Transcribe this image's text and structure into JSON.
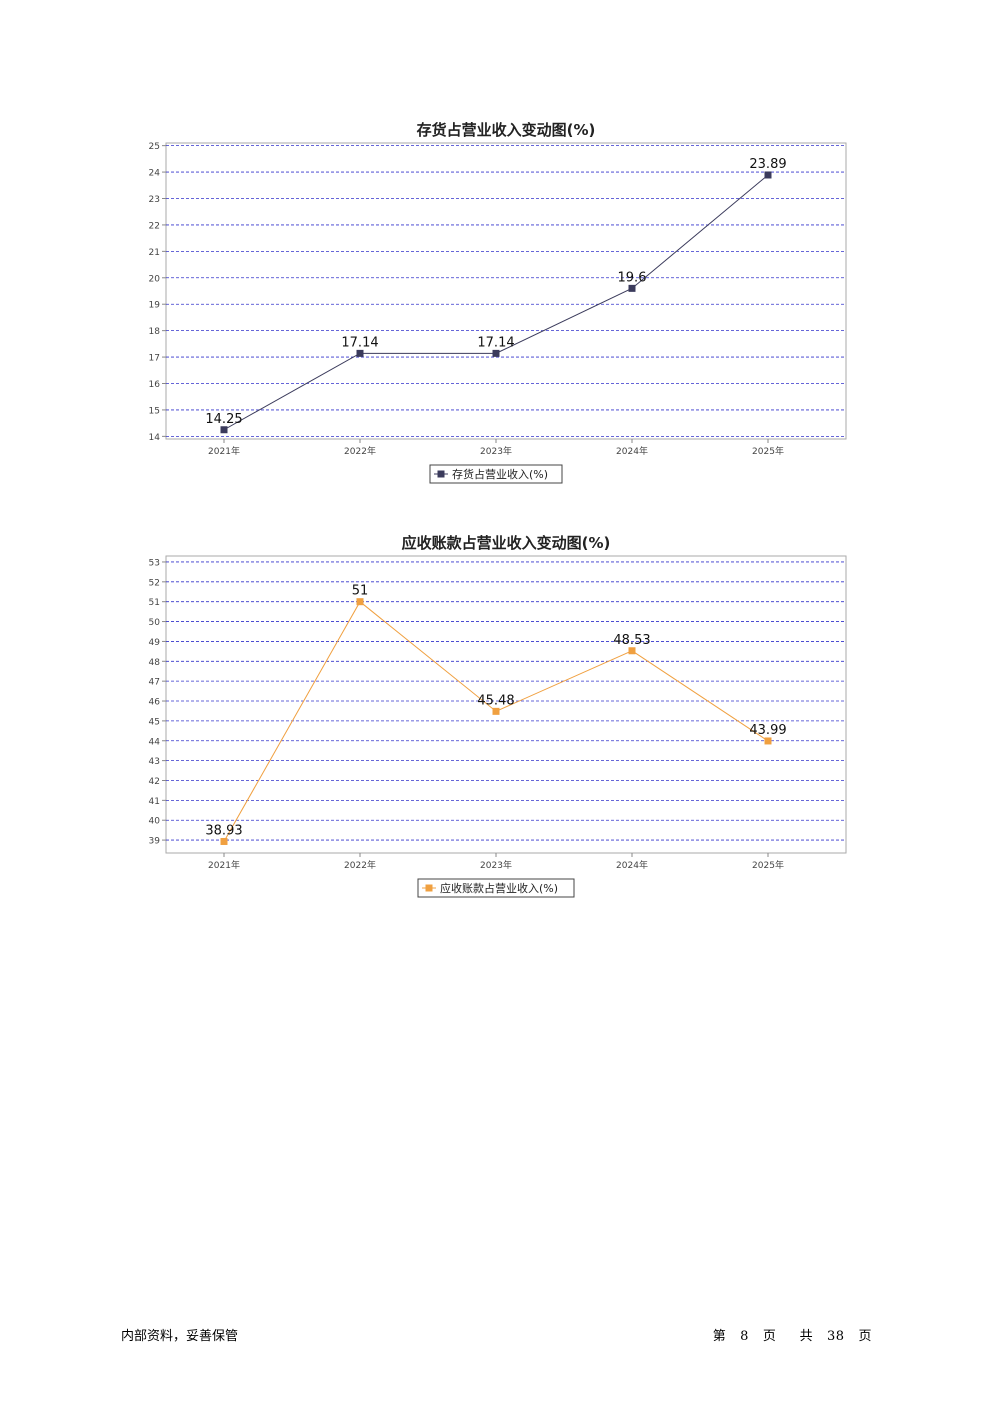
{
  "chart_data": [
    {
      "type": "line",
      "title": "存货占营业收入变动图(%)",
      "categories": [
        "2021年",
        "2022年",
        "2023年",
        "2024年",
        "2025年"
      ],
      "series": [
        {
          "name": "存货占营业收入(%)",
          "values": [
            14.25,
            17.14,
            17.14,
            19.6,
            23.89
          ],
          "color": "#3b3b5c"
        }
      ],
      "ylim": [
        13.9,
        25.1
      ],
      "yticks": [
        "25",
        "24",
        "23",
        "22",
        "21",
        "20",
        "19",
        "18",
        "17",
        "16",
        "15",
        "14"
      ],
      "ytick_values": [
        25,
        24,
        23,
        22,
        21,
        20,
        19,
        18,
        17,
        16,
        15,
        14
      ],
      "grid": true,
      "legend": "bottom-center"
    },
    {
      "type": "line",
      "title": "应收账款占营业收入变动图(%)",
      "categories": [
        "2021年",
        "2022年",
        "2023年",
        "2024年",
        "2025年"
      ],
      "series": [
        {
          "name": "应收账款占营业收入(%)",
          "values": [
            38.93,
            51,
            45.48,
            48.53,
            43.99
          ],
          "color": "#f0a040"
        }
      ],
      "ylim": [
        38.35,
        53.3
      ],
      "yticks": [
        "53",
        "52",
        "51",
        "50",
        "49",
        "48",
        "47",
        "46",
        "45",
        "44",
        "43",
        "42",
        "41",
        "40",
        "39"
      ],
      "ytick_values": [
        53,
        52,
        51,
        50,
        49,
        48,
        47,
        46,
        45,
        44,
        43,
        42,
        41,
        40,
        39
      ],
      "grid": true,
      "legend": "bottom-center"
    }
  ],
  "footer": {
    "left": "内部资料，妥善保管",
    "right_prefix": "第",
    "page": "8",
    "right_mid": "页",
    "right_total_prefix": "共",
    "total": "38",
    "right_suffix": "页"
  }
}
